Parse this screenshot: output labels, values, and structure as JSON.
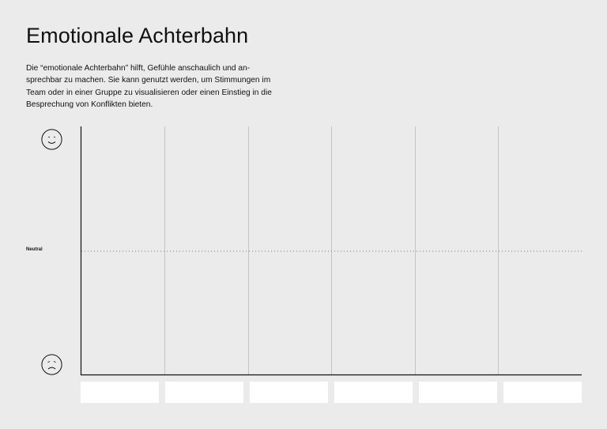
{
  "page": {
    "title": "Emotionale Achterbahn",
    "intro_lines": [
      "Die “emotionale Achterbahn” hilft, Gefühle anschaulich und an-",
      "sprechbar zu machen. Sie kann genutzt werden, um Stimmungen im",
      "Team oder in einer Gruppe zu visualisieren oder einen Einstieg in die",
      "Besprechung von Konflikten bieten."
    ]
  },
  "chart": {
    "neutral_label": "Neutral",
    "top_icon": "happy-face-icon",
    "bottom_icon": "sad-face-icon",
    "column_count": 6,
    "label_boxes": [
      "",
      "",
      "",
      "",
      "",
      ""
    ]
  },
  "colors": {
    "background": "#ebebeb",
    "text": "#111111",
    "axis": "#111111",
    "gridline": "#c4c4c4",
    "neutral_line": "#777777",
    "label_box": "#ffffff"
  }
}
